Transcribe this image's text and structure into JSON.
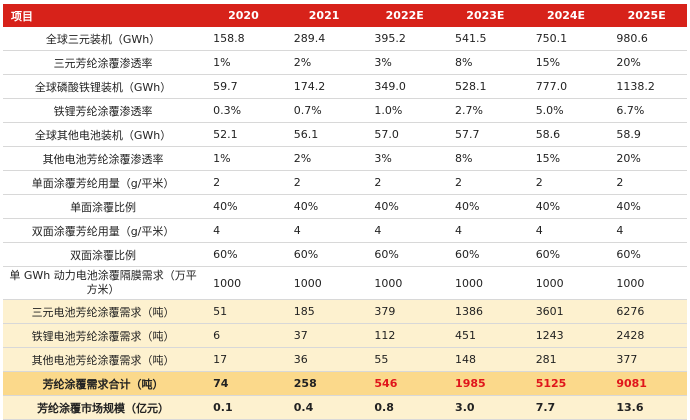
{
  "table": {
    "headers": [
      "项目",
      "2020",
      "2021",
      "2022E",
      "2023E",
      "2024E",
      "2025E"
    ],
    "rows": [
      {
        "label": "全球三元装机（GWh）",
        "values": [
          "158.8",
          "289.4",
          "395.2",
          "541.5",
          "750.1",
          "980.6"
        ],
        "style": "plain"
      },
      {
        "label": "三元芳纶涂覆渗透率",
        "values": [
          "1%",
          "2%",
          "3%",
          "8%",
          "15%",
          "20%"
        ],
        "style": "plain"
      },
      {
        "label": "全球磷酸铁锂装机（GWh）",
        "values": [
          "59.7",
          "174.2",
          "349.0",
          "528.1",
          "777.0",
          "1138.2"
        ],
        "style": "plain"
      },
      {
        "label": "铁锂芳纶涂覆渗透率",
        "values": [
          "0.3%",
          "0.7%",
          "1.0%",
          "2.7%",
          "5.0%",
          "6.7%"
        ],
        "style": "plain"
      },
      {
        "label": "全球其他电池装机（GWh）",
        "values": [
          "52.1",
          "56.1",
          "57.0",
          "57.7",
          "58.6",
          "58.9"
        ],
        "style": "plain"
      },
      {
        "label": "其他电池芳纶涂覆渗透率",
        "values": [
          "1%",
          "2%",
          "3%",
          "8%",
          "15%",
          "20%"
        ],
        "style": "plain"
      },
      {
        "label": "单面涂覆芳纶用量（g/平米）",
        "values": [
          "2",
          "2",
          "2",
          "2",
          "2",
          "2"
        ],
        "style": "plain"
      },
      {
        "label": "单面涂覆比例",
        "values": [
          "40%",
          "40%",
          "40%",
          "40%",
          "40%",
          "40%"
        ],
        "style": "plain"
      },
      {
        "label": "双面涂覆芳纶用量（g/平米）",
        "values": [
          "4",
          "4",
          "4",
          "4",
          "4",
          "4"
        ],
        "style": "plain"
      },
      {
        "label": "双面涂覆比例",
        "values": [
          "60%",
          "60%",
          "60%",
          "60%",
          "60%",
          "60%"
        ],
        "style": "plain"
      },
      {
        "label": "单 GWh 动力电池涂覆隔膜需求（万平方米）",
        "values": [
          "1000",
          "1000",
          "1000",
          "1000",
          "1000",
          "1000"
        ],
        "style": "tall"
      },
      {
        "label": "三元电池芳纶涂覆需求（吨）",
        "values": [
          "51",
          "185",
          "379",
          "1386",
          "3601",
          "6276"
        ],
        "style": "demand"
      },
      {
        "label": "铁锂电池芳纶涂覆需求（吨）",
        "values": [
          "6",
          "37",
          "112",
          "451",
          "1243",
          "2428"
        ],
        "style": "demand"
      },
      {
        "label": "其他电池芳纶涂覆需求（吨）",
        "values": [
          "17",
          "36",
          "55",
          "148",
          "281",
          "377"
        ],
        "style": "demand"
      },
      {
        "label": "芳纶涂覆需求合计（吨）",
        "values": [
          "74",
          "258",
          "546",
          "1985",
          "5125",
          "9081"
        ],
        "style": "total",
        "highlight_from": 2
      },
      {
        "label": "芳纶涂覆市场规模（亿元）",
        "values": [
          "0.1",
          "0.4",
          "0.8",
          "3.0",
          "7.7",
          "13.6"
        ],
        "style": "market"
      }
    ]
  },
  "colors": {
    "header_bg": "#d7221a",
    "demand_bg": "#fdf1cf",
    "total_bg": "#fbd98b",
    "highlight_text": "#e0151b"
  }
}
